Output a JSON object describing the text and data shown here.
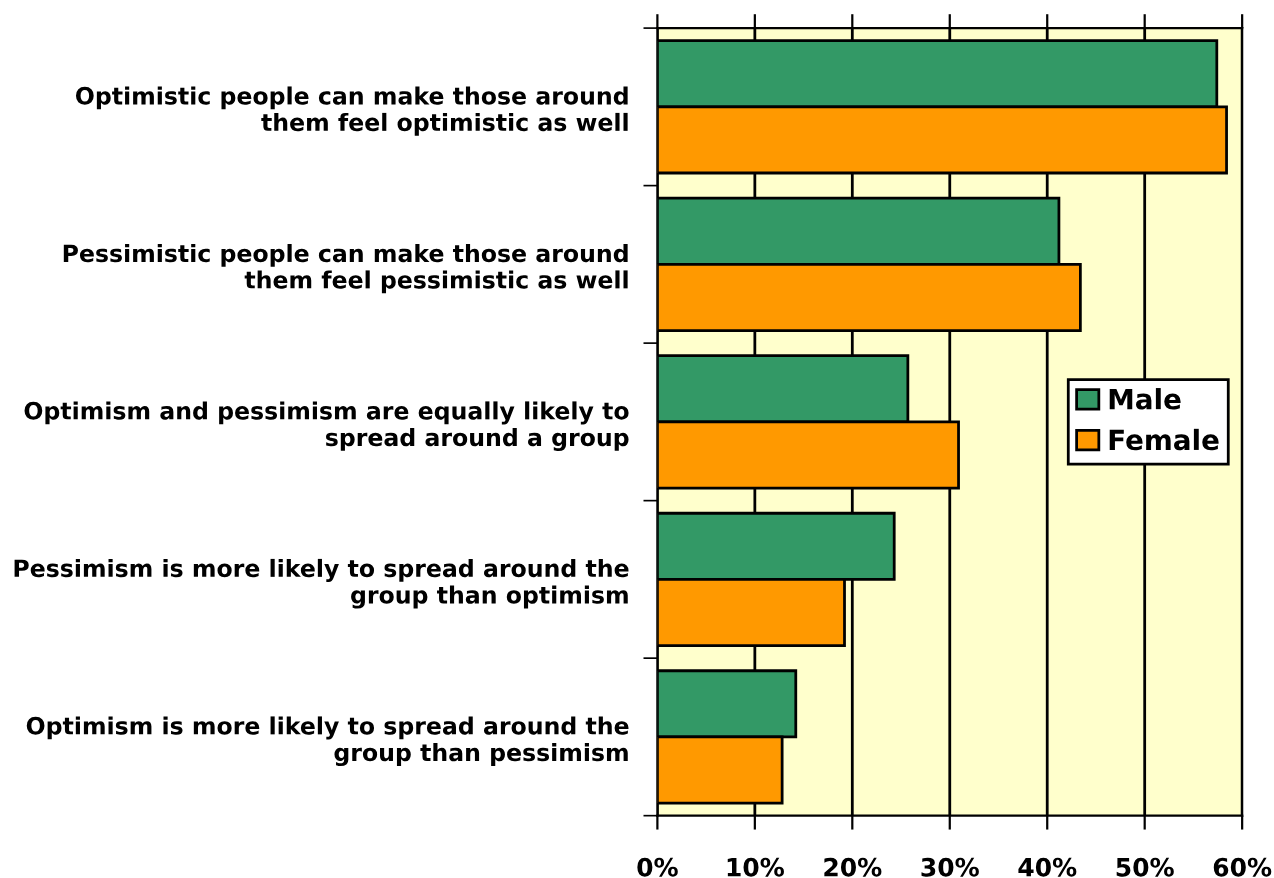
{
  "chart_data": {
    "type": "bar",
    "orientation": "horizontal",
    "categories": [
      "Optimistic people can make those around\nthem feel optimistic as well",
      "Pessimistic people can make those around\nthem feel pessimistic as well",
      "Optimism and pessimism are equally likely to\nspread around a group",
      "Pessimism is more likely to spread around the\ngroup than optimism",
      "Optimism is more likely to spread around the\ngroup than pessimism"
    ],
    "series": [
      {
        "name": "Male",
        "color": "#339966",
        "values": [
          57.4,
          41.2,
          25.7,
          24.3,
          14.2
        ]
      },
      {
        "name": "Female",
        "color": "#ff9900",
        "values": [
          58.4,
          43.4,
          30.9,
          19.2,
          12.8
        ]
      }
    ],
    "xlim": [
      0,
      60
    ],
    "xticks": [
      {
        "value": 0,
        "label": "0%"
      },
      {
        "value": 10,
        "label": "10%"
      },
      {
        "value": 20,
        "label": "20%"
      },
      {
        "value": 30,
        "label": "30%"
      },
      {
        "value": 40,
        "label": "40%"
      },
      {
        "value": 50,
        "label": "50%"
      },
      {
        "value": 60,
        "label": "60%"
      }
    ],
    "grid": "x",
    "legend": "right"
  }
}
